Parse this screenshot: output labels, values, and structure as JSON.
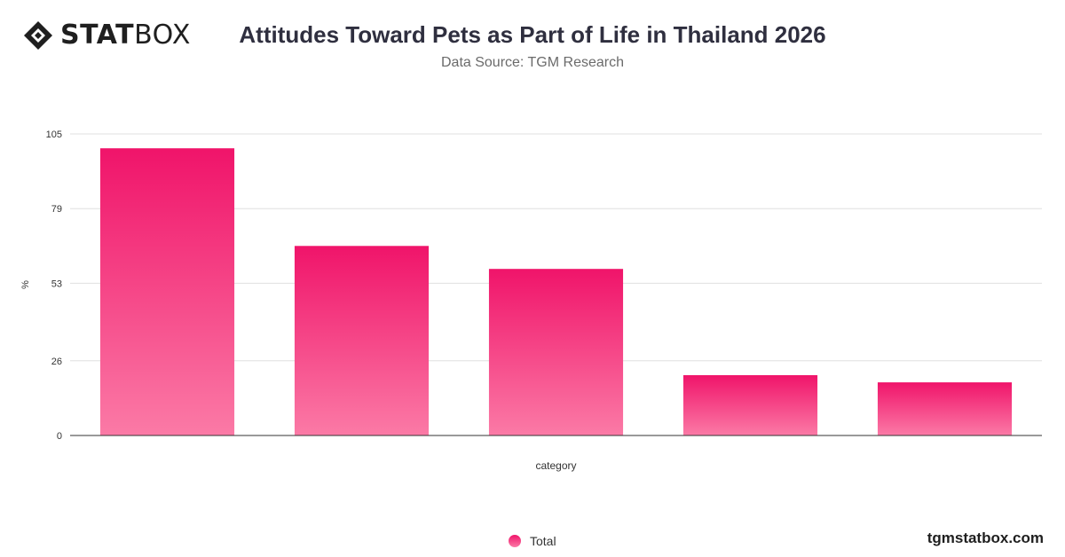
{
  "brand": {
    "logo_strong": "STAT",
    "logo_light": "BOX",
    "watermark": "tgmstatbox.com",
    "icon": "diamond-logo-icon"
  },
  "chart_data": {
    "type": "bar",
    "title": "Attitudes Toward Pets as Part of Life in Thailand 2026",
    "subtitle": "Data Source: TGM Research",
    "xlabel": "category",
    "ylabel": "%",
    "categories": [
      "",
      "",
      "",
      "",
      ""
    ],
    "series": [
      {
        "name": "Total",
        "values": [
          100,
          66,
          58,
          21,
          18.5
        ]
      }
    ],
    "yticks": [
      0,
      26,
      53,
      79,
      105
    ],
    "ylim": [
      0,
      105
    ],
    "grid": true,
    "legend_position": "bottom-center",
    "colors": {
      "bar_top": "#f0146a",
      "bar_bottom": "#fb7aa6",
      "grid": "#e0e0e0",
      "axis": "#333333"
    }
  }
}
